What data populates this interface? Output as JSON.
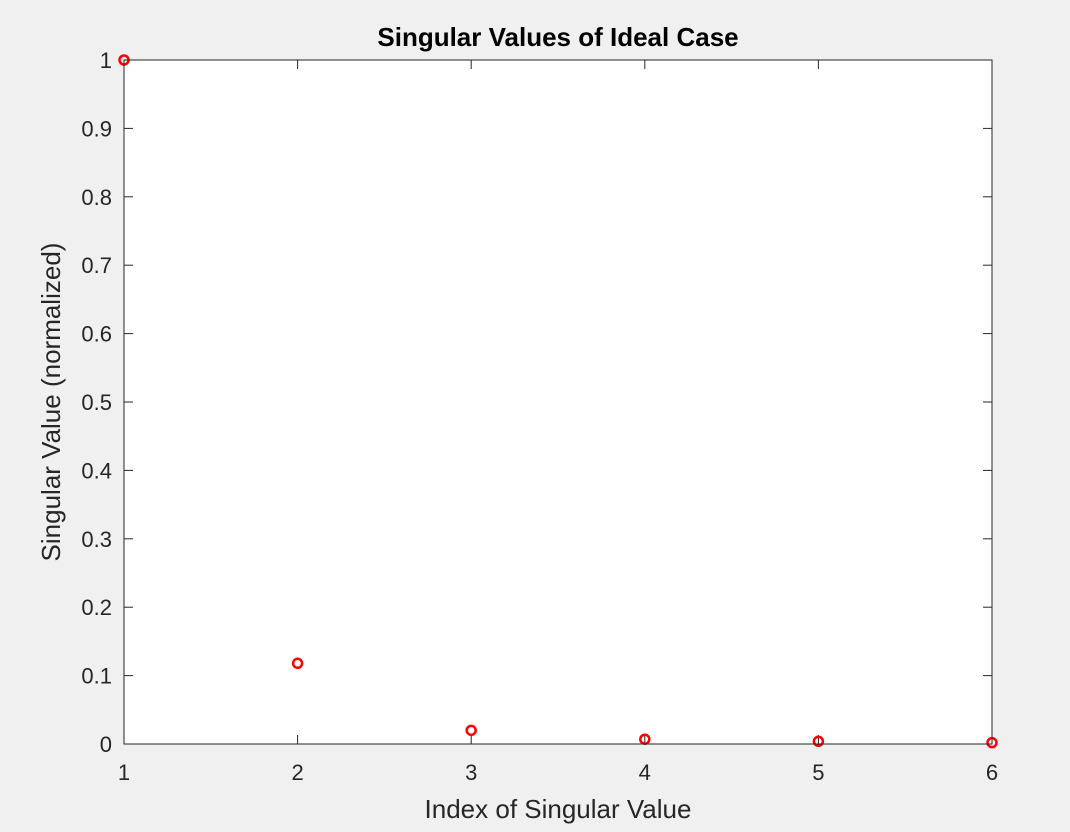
{
  "chart_data": {
    "type": "scatter",
    "title": "Singular Values of Ideal Case",
    "xlabel": "Index of Singular Value",
    "ylabel": "Singular Value (normalized)",
    "xlim": [
      1,
      6
    ],
    "ylim": [
      0,
      1
    ],
    "xticks": [
      "1",
      "2",
      "3",
      "4",
      "5",
      "6"
    ],
    "yticks": [
      "0",
      "0.1",
      "0.2",
      "0.3",
      "0.4",
      "0.5",
      "0.6",
      "0.7",
      "0.8",
      "0.9",
      "1"
    ],
    "grid": false,
    "marker": "circle",
    "series": [
      {
        "x": [
          1,
          2,
          3,
          4,
          5,
          6
        ],
        "y": [
          1.0,
          0.118,
          0.02,
          0.007,
          0.004,
          0.002
        ]
      }
    ]
  },
  "colors": {
    "marker": "#ff0000",
    "axes": "#262626",
    "background": "#f0f0f0",
    "plot_area": "#ffffff"
  }
}
